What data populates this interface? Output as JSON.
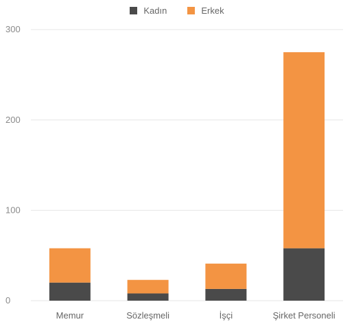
{
  "chart_data": {
    "type": "bar",
    "stacked": true,
    "categories": [
      "Memur",
      "Sözleşmeli",
      "İşçi",
      "Şirket Personeli"
    ],
    "series": [
      {
        "name": "Kadın",
        "color": "#4a4a4a",
        "values": [
          20,
          8,
          13,
          58
        ]
      },
      {
        "name": "Erkek",
        "color": "#f39443",
        "values": [
          38,
          15,
          28,
          217
        ]
      }
    ],
    "yticks": [
      0,
      100,
      200,
      300
    ],
    "ylim": [
      0,
      310
    ],
    "grid": true,
    "legend_position": "top-center"
  }
}
